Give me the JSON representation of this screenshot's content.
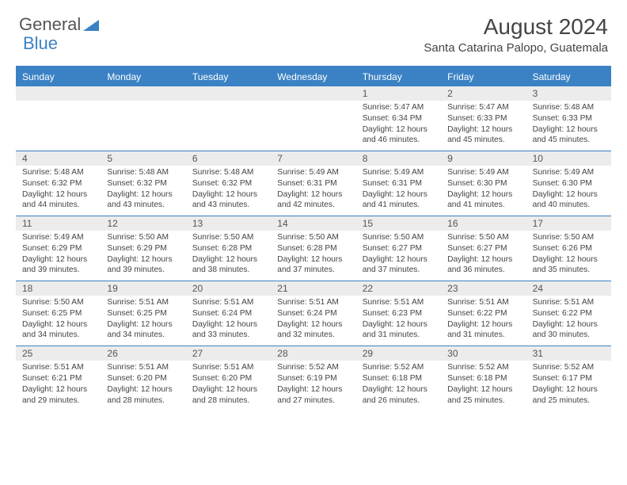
{
  "logo": {
    "text1": "General",
    "text2": "Blue"
  },
  "title": "August 2024",
  "location": "Santa Catarina Palopo, Guatemala",
  "colors": {
    "primary": "#3b82c4",
    "header_bg": "#3b82c4",
    "daynum_bg": "#ececec",
    "text": "#444444",
    "bg": "#ffffff"
  },
  "day_headers": [
    "Sunday",
    "Monday",
    "Tuesday",
    "Wednesday",
    "Thursday",
    "Friday",
    "Saturday"
  ],
  "weeks": [
    [
      {
        "n": "",
        "t": ""
      },
      {
        "n": "",
        "t": ""
      },
      {
        "n": "",
        "t": ""
      },
      {
        "n": "",
        "t": ""
      },
      {
        "n": "1",
        "t": "Sunrise: 5:47 AM\nSunset: 6:34 PM\nDaylight: 12 hours and 46 minutes."
      },
      {
        "n": "2",
        "t": "Sunrise: 5:47 AM\nSunset: 6:33 PM\nDaylight: 12 hours and 45 minutes."
      },
      {
        "n": "3",
        "t": "Sunrise: 5:48 AM\nSunset: 6:33 PM\nDaylight: 12 hours and 45 minutes."
      }
    ],
    [
      {
        "n": "4",
        "t": "Sunrise: 5:48 AM\nSunset: 6:32 PM\nDaylight: 12 hours and 44 minutes."
      },
      {
        "n": "5",
        "t": "Sunrise: 5:48 AM\nSunset: 6:32 PM\nDaylight: 12 hours and 43 minutes."
      },
      {
        "n": "6",
        "t": "Sunrise: 5:48 AM\nSunset: 6:32 PM\nDaylight: 12 hours and 43 minutes."
      },
      {
        "n": "7",
        "t": "Sunrise: 5:49 AM\nSunset: 6:31 PM\nDaylight: 12 hours and 42 minutes."
      },
      {
        "n": "8",
        "t": "Sunrise: 5:49 AM\nSunset: 6:31 PM\nDaylight: 12 hours and 41 minutes."
      },
      {
        "n": "9",
        "t": "Sunrise: 5:49 AM\nSunset: 6:30 PM\nDaylight: 12 hours and 41 minutes."
      },
      {
        "n": "10",
        "t": "Sunrise: 5:49 AM\nSunset: 6:30 PM\nDaylight: 12 hours and 40 minutes."
      }
    ],
    [
      {
        "n": "11",
        "t": "Sunrise: 5:49 AM\nSunset: 6:29 PM\nDaylight: 12 hours and 39 minutes."
      },
      {
        "n": "12",
        "t": "Sunrise: 5:50 AM\nSunset: 6:29 PM\nDaylight: 12 hours and 39 minutes."
      },
      {
        "n": "13",
        "t": "Sunrise: 5:50 AM\nSunset: 6:28 PM\nDaylight: 12 hours and 38 minutes."
      },
      {
        "n": "14",
        "t": "Sunrise: 5:50 AM\nSunset: 6:28 PM\nDaylight: 12 hours and 37 minutes."
      },
      {
        "n": "15",
        "t": "Sunrise: 5:50 AM\nSunset: 6:27 PM\nDaylight: 12 hours and 37 minutes."
      },
      {
        "n": "16",
        "t": "Sunrise: 5:50 AM\nSunset: 6:27 PM\nDaylight: 12 hours and 36 minutes."
      },
      {
        "n": "17",
        "t": "Sunrise: 5:50 AM\nSunset: 6:26 PM\nDaylight: 12 hours and 35 minutes."
      }
    ],
    [
      {
        "n": "18",
        "t": "Sunrise: 5:50 AM\nSunset: 6:25 PM\nDaylight: 12 hours and 34 minutes."
      },
      {
        "n": "19",
        "t": "Sunrise: 5:51 AM\nSunset: 6:25 PM\nDaylight: 12 hours and 34 minutes."
      },
      {
        "n": "20",
        "t": "Sunrise: 5:51 AM\nSunset: 6:24 PM\nDaylight: 12 hours and 33 minutes."
      },
      {
        "n": "21",
        "t": "Sunrise: 5:51 AM\nSunset: 6:24 PM\nDaylight: 12 hours and 32 minutes."
      },
      {
        "n": "22",
        "t": "Sunrise: 5:51 AM\nSunset: 6:23 PM\nDaylight: 12 hours and 31 minutes."
      },
      {
        "n": "23",
        "t": "Sunrise: 5:51 AM\nSunset: 6:22 PM\nDaylight: 12 hours and 31 minutes."
      },
      {
        "n": "24",
        "t": "Sunrise: 5:51 AM\nSunset: 6:22 PM\nDaylight: 12 hours and 30 minutes."
      }
    ],
    [
      {
        "n": "25",
        "t": "Sunrise: 5:51 AM\nSunset: 6:21 PM\nDaylight: 12 hours and 29 minutes."
      },
      {
        "n": "26",
        "t": "Sunrise: 5:51 AM\nSunset: 6:20 PM\nDaylight: 12 hours and 28 minutes."
      },
      {
        "n": "27",
        "t": "Sunrise: 5:51 AM\nSunset: 6:20 PM\nDaylight: 12 hours and 28 minutes."
      },
      {
        "n": "28",
        "t": "Sunrise: 5:52 AM\nSunset: 6:19 PM\nDaylight: 12 hours and 27 minutes."
      },
      {
        "n": "29",
        "t": "Sunrise: 5:52 AM\nSunset: 6:18 PM\nDaylight: 12 hours and 26 minutes."
      },
      {
        "n": "30",
        "t": "Sunrise: 5:52 AM\nSunset: 6:18 PM\nDaylight: 12 hours and 25 minutes."
      },
      {
        "n": "31",
        "t": "Sunrise: 5:52 AM\nSunset: 6:17 PM\nDaylight: 12 hours and 25 minutes."
      }
    ]
  ]
}
